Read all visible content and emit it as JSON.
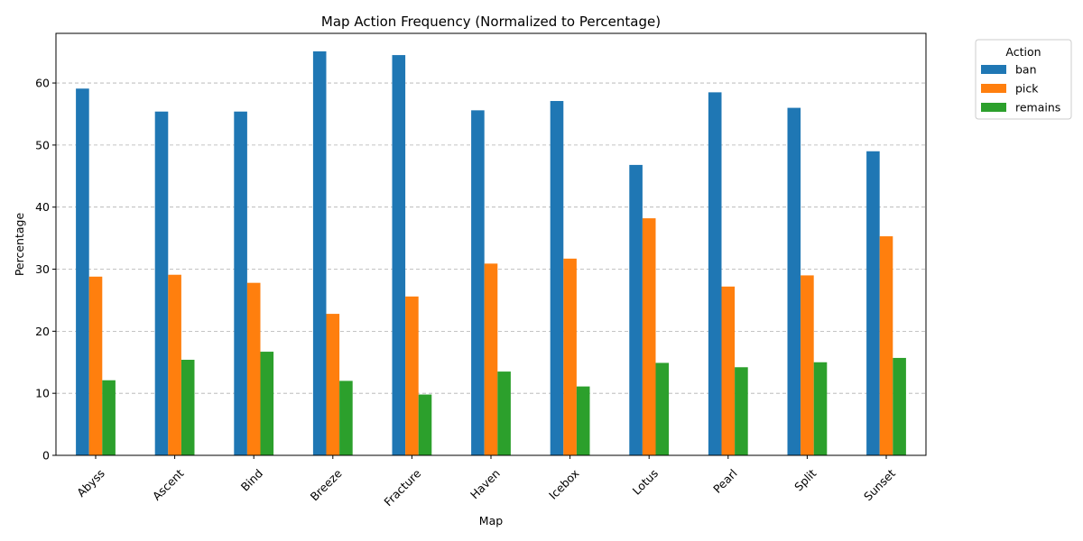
{
  "chart_data": {
    "type": "bar",
    "title": "Map Action Frequency (Normalized to Percentage)",
    "xlabel": "Map",
    "ylabel": "Percentage",
    "categories": [
      "Abyss",
      "Ascent",
      "Bind",
      "Breeze",
      "Fracture",
      "Haven",
      "Icebox",
      "Lotus",
      "Pearl",
      "Split",
      "Sunset"
    ],
    "series": [
      {
        "name": "ban",
        "color": "#1f77b4",
        "values": [
          59.1,
          55.4,
          55.4,
          65.1,
          64.5,
          55.6,
          57.1,
          46.8,
          58.5,
          56.0,
          49.0
        ]
      },
      {
        "name": "pick",
        "color": "#ff7f0e",
        "values": [
          28.8,
          29.1,
          27.8,
          22.8,
          25.6,
          30.9,
          31.7,
          38.2,
          27.2,
          29.0,
          35.3
        ]
      },
      {
        "name": "remains",
        "color": "#2ca02c",
        "values": [
          12.1,
          15.4,
          16.7,
          12.0,
          9.8,
          13.5,
          11.1,
          14.9,
          14.2,
          15.0,
          15.7
        ]
      }
    ],
    "ylim": [
      0,
      68
    ],
    "yticks": [
      0,
      10,
      20,
      30,
      40,
      50,
      60
    ],
    "grid": "y-dashed",
    "legend": {
      "title": "Action",
      "placement": "outside-top-right"
    }
  }
}
